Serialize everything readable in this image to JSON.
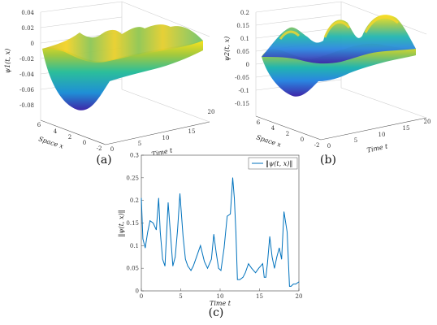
{
  "panels": {
    "a": "(a)",
    "b": "(b)",
    "c": "(c)"
  },
  "chart_data": [
    {
      "type": "surface",
      "panel": "(a)",
      "zlabel": "ψ1(t, x)",
      "xlabel": "Time t",
      "ylabel": "Space x",
      "t_ticks": [
        "0",
        "5",
        "10",
        "15",
        "20"
      ],
      "x_ticks": [
        "-2",
        "0",
        "2",
        "4",
        "6"
      ],
      "z_ticks": [
        "0.04",
        "0.02",
        "0",
        "-0.02",
        "-0.04",
        "-0.06",
        "-0.08"
      ],
      "zlim": [
        -0.08,
        0.04
      ],
      "colormap": "parula"
    },
    {
      "type": "surface",
      "panel": "(b)",
      "zlabel": "ψ2(t, x)",
      "xlabel": "Time t",
      "ylabel": "Space x",
      "t_ticks": [
        "0",
        "5",
        "10",
        "15",
        "20"
      ],
      "x_ticks": [
        "-2",
        "0",
        "2",
        "4",
        "6"
      ],
      "z_ticks": [
        "0.2",
        "0.15",
        "0.1",
        "0.05",
        "0",
        "-0.05",
        "-0.1",
        "-0.15"
      ],
      "zlim": [
        -0.15,
        0.2
      ],
      "colormap": "parula"
    },
    {
      "type": "line",
      "panel": "(c)",
      "xlabel": "Time t",
      "ylabel": "‖ψ(t, x)‖",
      "xlim": [
        0,
        20
      ],
      "ylim": [
        0,
        0.3
      ],
      "x_ticks": [
        "0",
        "5",
        "10",
        "15",
        "20"
      ],
      "y_ticks": [
        "0",
        "0.05",
        "0.1",
        "0.15",
        "0.2",
        "0.25",
        "0.3"
      ],
      "legend_position": "top-right",
      "color": "#0072BD",
      "series": [
        {
          "name": "‖ψ(t, x)‖",
          "x": [
            0,
            0.2,
            0.5,
            0.8,
            1.1,
            1.5,
            1.9,
            2.2,
            2.4,
            2.7,
            3.0,
            3.4,
            3.7,
            4.0,
            4.3,
            4.6,
            4.9,
            5.3,
            5.6,
            5.9,
            6.3,
            6.6,
            7.0,
            7.5,
            8.0,
            8.4,
            8.9,
            9.2,
            9.5,
            9.8,
            10.1,
            10.5,
            10.9,
            11.3,
            11.6,
            11.8,
            12.0,
            12.2,
            12.5,
            12.9,
            13.2,
            13.6,
            14.0,
            14.5,
            14.9,
            15.4,
            15.6,
            15.8,
            16.0,
            16.3,
            16.6,
            16.9,
            17.2,
            17.5,
            17.8,
            18.1,
            18.5,
            18.8,
            19.0,
            19.3,
            19.6,
            20.0
          ],
          "y": [
            0.205,
            0.115,
            0.095,
            0.13,
            0.155,
            0.15,
            0.135,
            0.205,
            0.13,
            0.07,
            0.055,
            0.195,
            0.125,
            0.055,
            0.075,
            0.135,
            0.215,
            0.12,
            0.07,
            0.055,
            0.045,
            0.055,
            0.075,
            0.1,
            0.065,
            0.05,
            0.07,
            0.125,
            0.085,
            0.05,
            0.045,
            0.095,
            0.165,
            0.17,
            0.25,
            0.205,
            0.13,
            0.025,
            0.025,
            0.03,
            0.04,
            0.06,
            0.05,
            0.04,
            0.05,
            0.06,
            0.03,
            0.03,
            0.06,
            0.12,
            0.075,
            0.05,
            0.075,
            0.095,
            0.07,
            0.175,
            0.13,
            0.01,
            0.01,
            0.015,
            0.015,
            0.02
          ]
        }
      ]
    }
  ]
}
